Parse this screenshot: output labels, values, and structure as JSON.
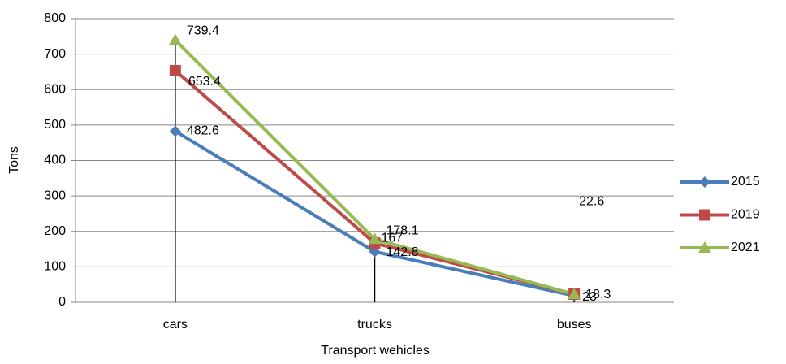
{
  "chart_data": {
    "type": "line",
    "x_label": "Transport wehicles",
    "y_label": "Tons",
    "categories": [
      "cars",
      "trucks",
      "buses"
    ],
    "series": [
      {
        "name": "2015",
        "color": "#4a7ebb",
        "marker": "diamond",
        "values": [
          482.6,
          142.8,
          18.3
        ]
      },
      {
        "name": "2019",
        "color": "#be4b48",
        "marker": "square",
        "values": [
          653.4,
          167,
          23
        ]
      },
      {
        "name": "2021",
        "color": "#98b954",
        "marker": "triangle",
        "values": [
          739.4,
          178.1,
          22.6
        ]
      }
    ],
    "ylim": [
      0,
      800
    ],
    "yticks": [
      0,
      100,
      200,
      300,
      400,
      500,
      600,
      700,
      800
    ],
    "grid": true,
    "legend": "right",
    "drop_lines": true
  }
}
